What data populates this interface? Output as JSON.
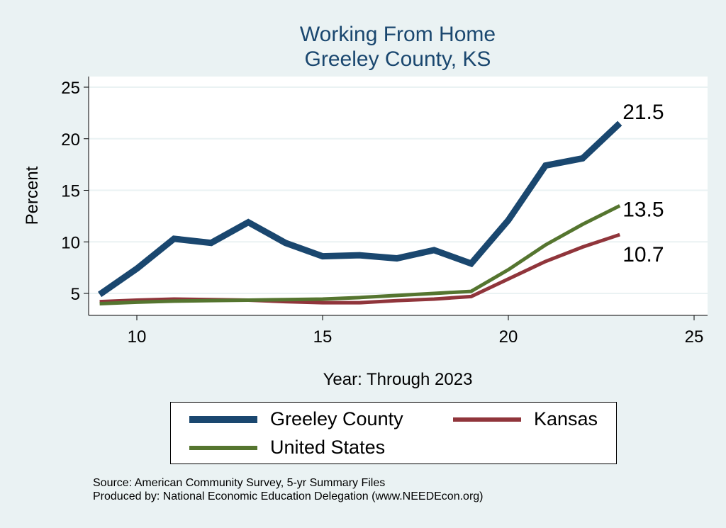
{
  "chart_data": {
    "type": "line",
    "title": "Working From Home",
    "subtitle": "Greeley County, KS",
    "xlabel": "Year: Through 2023",
    "ylabel": "Percent",
    "xlim": [
      8.7,
      25.2
    ],
    "ylim": [
      2.8,
      26
    ],
    "xticks": [
      10,
      15,
      20,
      25
    ],
    "yticks": [
      5,
      10,
      15,
      20,
      25
    ],
    "grid": true,
    "legend_position": "bottom",
    "x": [
      9,
      10,
      11,
      12,
      13,
      14,
      15,
      16,
      17,
      18,
      19,
      20,
      21,
      22,
      23
    ],
    "series": [
      {
        "name": "Greeley County",
        "color": "#1a476f",
        "width": 9,
        "values": [
          4.9,
          7.4,
          10.3,
          9.9,
          11.9,
          9.9,
          8.6,
          8.7,
          8.4,
          9.2,
          7.9,
          12.1,
          17.4,
          18.1,
          21.5
        ],
        "end_label": "21.5"
      },
      {
        "name": "Kansas",
        "color": "#90353b",
        "width": 5,
        "values": [
          4.2,
          4.35,
          4.45,
          4.4,
          4.35,
          4.2,
          4.1,
          4.1,
          4.3,
          4.45,
          4.7,
          6.4,
          8.1,
          9.5,
          10.7
        ],
        "end_label": "10.7"
      },
      {
        "name": "United States",
        "color": "#55752f",
        "width": 5,
        "values": [
          4.0,
          4.15,
          4.25,
          4.3,
          4.35,
          4.4,
          4.45,
          4.6,
          4.8,
          5.0,
          5.2,
          7.3,
          9.7,
          11.7,
          13.5
        ],
        "end_label": "13.5"
      }
    ]
  },
  "source": "Source: American Community Survey, 5-yr Summary Files",
  "producer": "Produced by: National Economic Education Delegation (www.NEEDEcon.org)"
}
